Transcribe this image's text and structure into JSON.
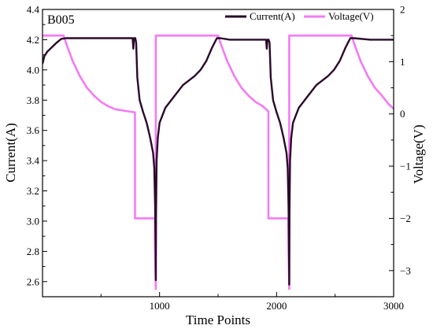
{
  "chart_data": {
    "type": "line",
    "annotation": "B005",
    "xlabel": "Time Points",
    "ylabel_left": "Current(A)",
    "ylabel_right": "Voltage(V)",
    "xlim": [
      0,
      3000
    ],
    "ylim_left": [
      2.5,
      4.4
    ],
    "ylim_right": [
      -3.5,
      2
    ],
    "x_ticks": [
      "1000",
      "2000",
      "3000"
    ],
    "x_tick_values": [
      1000,
      2000,
      3000
    ],
    "y_left_ticks": [
      "2.6",
      "2.8",
      "3.0",
      "3.2",
      "3.4",
      "3.6",
      "3.8",
      "4.0",
      "4.2",
      "4.4"
    ],
    "y_left_tick_values": [
      2.6,
      2.8,
      3.0,
      3.2,
      3.4,
      3.6,
      3.8,
      4.0,
      4.2,
      4.4
    ],
    "y_right_ticks": [
      "-3",
      "-2",
      "-1",
      "0",
      "1",
      "2"
    ],
    "y_right_tick_values": [
      -3,
      -2,
      -1,
      0,
      1,
      2
    ],
    "grid": false,
    "legend_position": "top-right",
    "series": [
      {
        "name": "Current(A)",
        "axis": "left",
        "color": "#2a0a2a",
        "points": [
          [
            0,
            4.04
          ],
          [
            15,
            4.09
          ],
          [
            40,
            4.12
          ],
          [
            80,
            4.15
          ],
          [
            120,
            4.18
          ],
          [
            160,
            4.205
          ],
          [
            200,
            4.21
          ],
          [
            400,
            4.21
          ],
          [
            600,
            4.21
          ],
          [
            770,
            4.21
          ],
          [
            776,
            4.14
          ],
          [
            782,
            4.21
          ],
          [
            793,
            4.21
          ],
          [
            800,
            4.18
          ],
          [
            810,
            3.95
          ],
          [
            830,
            3.8
          ],
          [
            860,
            3.72
          ],
          [
            890,
            3.65
          ],
          [
            920,
            3.55
          ],
          [
            945,
            3.45
          ],
          [
            955,
            3.35
          ],
          [
            962,
            3.1
          ],
          [
            966,
            2.85
          ],
          [
            968,
            2.61
          ],
          [
            970,
            3.05
          ],
          [
            975,
            3.4
          ],
          [
            985,
            3.55
          ],
          [
            1000,
            3.65
          ],
          [
            1050,
            3.75
          ],
          [
            1100,
            3.8
          ],
          [
            1150,
            3.85
          ],
          [
            1200,
            3.9
          ],
          [
            1250,
            3.93
          ],
          [
            1300,
            3.96
          ],
          [
            1350,
            4.0
          ],
          [
            1400,
            4.06
          ],
          [
            1450,
            4.15
          ],
          [
            1490,
            4.21
          ],
          [
            1520,
            4.21
          ],
          [
            1600,
            4.2
          ],
          [
            1800,
            4.2
          ],
          [
            1910,
            4.2
          ],
          [
            1916,
            4.14
          ],
          [
            1922,
            4.2
          ],
          [
            1932,
            4.2
          ],
          [
            1940,
            4.18
          ],
          [
            1950,
            3.95
          ],
          [
            1970,
            3.8
          ],
          [
            2000,
            3.72
          ],
          [
            2030,
            3.65
          ],
          [
            2060,
            3.55
          ],
          [
            2085,
            3.45
          ],
          [
            2095,
            3.35
          ],
          [
            2102,
            3.1
          ],
          [
            2106,
            2.85
          ],
          [
            2108,
            2.58
          ],
          [
            2110,
            3.05
          ],
          [
            2115,
            3.4
          ],
          [
            2125,
            3.55
          ],
          [
            2140,
            3.65
          ],
          [
            2190,
            3.75
          ],
          [
            2240,
            3.8
          ],
          [
            2290,
            3.85
          ],
          [
            2340,
            3.9
          ],
          [
            2390,
            3.93
          ],
          [
            2440,
            3.96
          ],
          [
            2490,
            4.0
          ],
          [
            2540,
            4.06
          ],
          [
            2590,
            4.15
          ],
          [
            2630,
            4.21
          ],
          [
            2660,
            4.21
          ],
          [
            2800,
            4.2
          ],
          [
            3000,
            4.2
          ]
        ]
      },
      {
        "name": "Voltage(V)",
        "axis": "right",
        "color": "#f47af4",
        "points": [
          [
            0,
            1.5
          ],
          [
            180,
            1.5
          ],
          [
            210,
            1.3
          ],
          [
            260,
            1.0
          ],
          [
            320,
            0.72
          ],
          [
            380,
            0.5
          ],
          [
            440,
            0.35
          ],
          [
            500,
            0.23
          ],
          [
            560,
            0.15
          ],
          [
            620,
            0.09
          ],
          [
            700,
            0.06
          ],
          [
            790,
            0.03
          ],
          [
            790,
            -2.0
          ],
          [
            960,
            -2.0
          ],
          [
            960,
            -2.5
          ],
          [
            968,
            -3.35
          ],
          [
            968,
            1.5
          ],
          [
            1500,
            1.5
          ],
          [
            1530,
            1.3
          ],
          [
            1580,
            1.0
          ],
          [
            1640,
            0.72
          ],
          [
            1700,
            0.5
          ],
          [
            1760,
            0.35
          ],
          [
            1820,
            0.23
          ],
          [
            1880,
            0.15
          ],
          [
            1930,
            0.05
          ],
          [
            1930,
            -2.0
          ],
          [
            2100,
            -2.0
          ],
          [
            2100,
            -2.5
          ],
          [
            2108,
            -3.35
          ],
          [
            2108,
            1.5
          ],
          [
            2640,
            1.5
          ],
          [
            2670,
            1.3
          ],
          [
            2720,
            1.0
          ],
          [
            2780,
            0.72
          ],
          [
            2840,
            0.5
          ],
          [
            2900,
            0.35
          ],
          [
            2960,
            0.18
          ],
          [
            3000,
            0.1
          ]
        ]
      }
    ]
  }
}
